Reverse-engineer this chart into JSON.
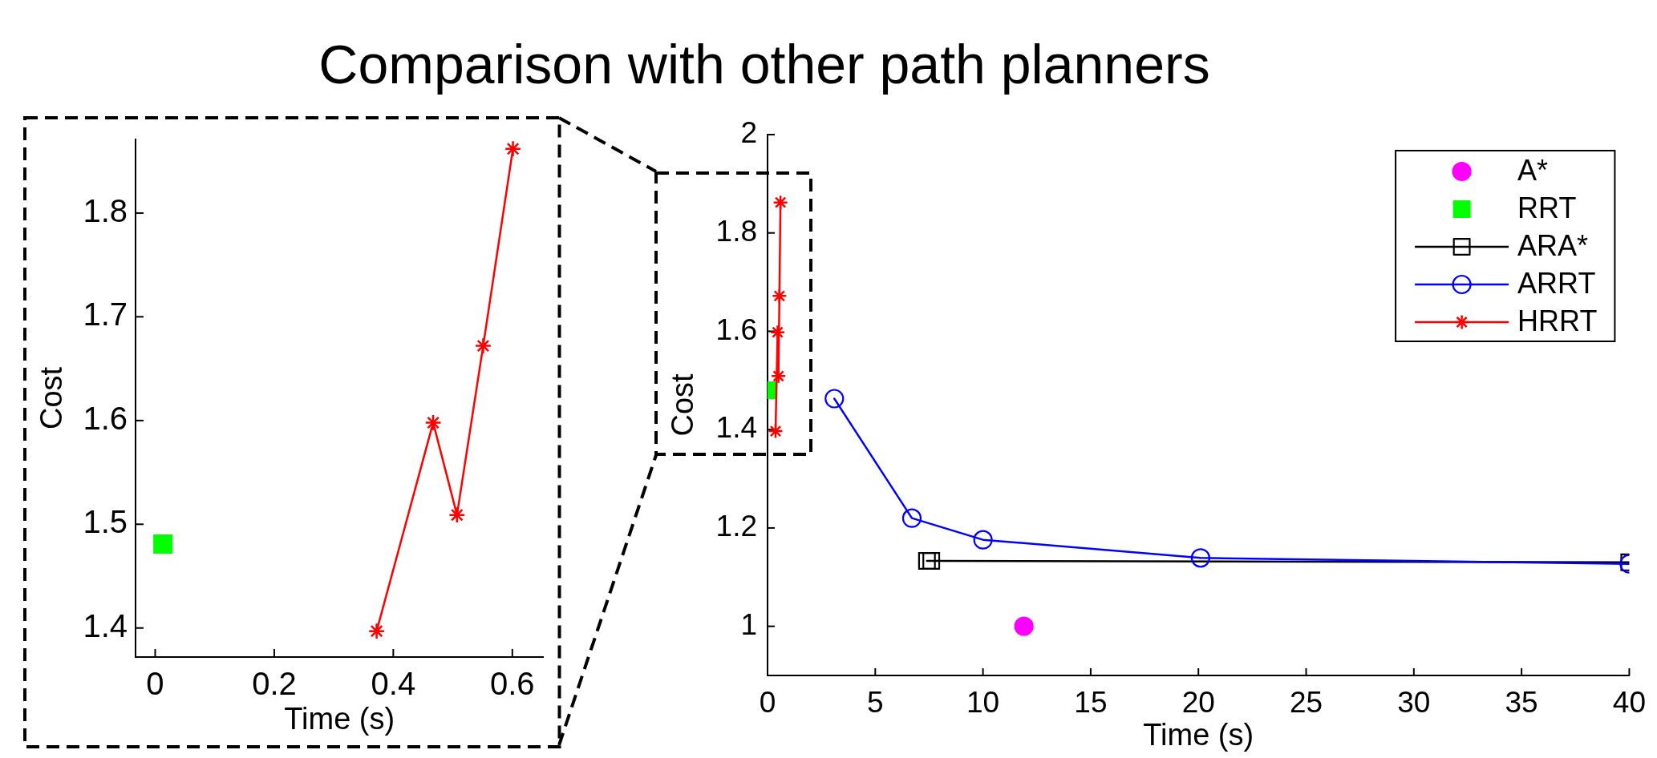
{
  "chart_data": [
    {
      "type": "line",
      "title": "Comparison with other path planners",
      "xlabel": "Time (s)",
      "ylabel": "Cost",
      "xlim": [
        -0.033,
        0.652
      ],
      "ylim": [
        1.372,
        1.871
      ],
      "xticks": [
        0,
        0.2,
        0.4,
        0.6
      ],
      "yticks": [
        1.4,
        1.5,
        1.6,
        1.7,
        1.8
      ],
      "series": [
        {
          "type": "scatter",
          "marker": "square",
          "color": "#00ff00",
          "x": [
            0.013
          ],
          "values": [
            1.481
          ]
        },
        {
          "type": "line",
          "marker": "cross",
          "color": "#ff0000",
          "x": [
            0.372,
            0.467,
            0.507,
            0.551,
            0.601
          ],
          "values": [
            1.397,
            1.598,
            1.509,
            1.672,
            1.862
          ]
        }
      ]
    },
    {
      "type": "line",
      "xlabel": "Time (s)",
      "ylabel": "Cost",
      "xlim": [
        0,
        40
      ],
      "ylim": [
        0.9,
        2
      ],
      "xticks": [
        0,
        5,
        10,
        15,
        20,
        25,
        30,
        35,
        40
      ],
      "yticks": [
        1,
        1.2,
        1.4,
        1.6,
        1.8,
        2
      ],
      "legend": "top right",
      "series": [
        {
          "name": "A*",
          "type": "scatter",
          "marker": "circle",
          "color": "#ff00ff",
          "x": [
            11.9
          ],
          "values": [
            1
          ]
        },
        {
          "name": "RRT",
          "type": "scatter",
          "marker": "square",
          "color": "#00ff00",
          "x": [
            0.013
          ],
          "values": [
            1.48
          ]
        },
        {
          "name": "ARA*",
          "type": "line",
          "marker": "square",
          "color": "#000000",
          "x": [
            7.4,
            7.6,
            40
          ],
          "values": [
            1.133,
            1.133,
            1.13
          ]
        },
        {
          "name": "ARRT",
          "type": "line",
          "marker": "circle",
          "color": "#0000ff",
          "x": [
            3.1,
            6.7,
            10,
            20.1,
            40
          ],
          "values": [
            1.463,
            1.22,
            1.176,
            1.139,
            1.127
          ]
        },
        {
          "name": "HRRT",
          "type": "line",
          "marker": "cross",
          "color": "#ff0000",
          "x": [
            0.372,
            0.467,
            0.507,
            0.551,
            0.601
          ],
          "values": [
            1.397,
            1.598,
            1.509,
            1.672,
            1.862
          ]
        }
      ]
    }
  ]
}
